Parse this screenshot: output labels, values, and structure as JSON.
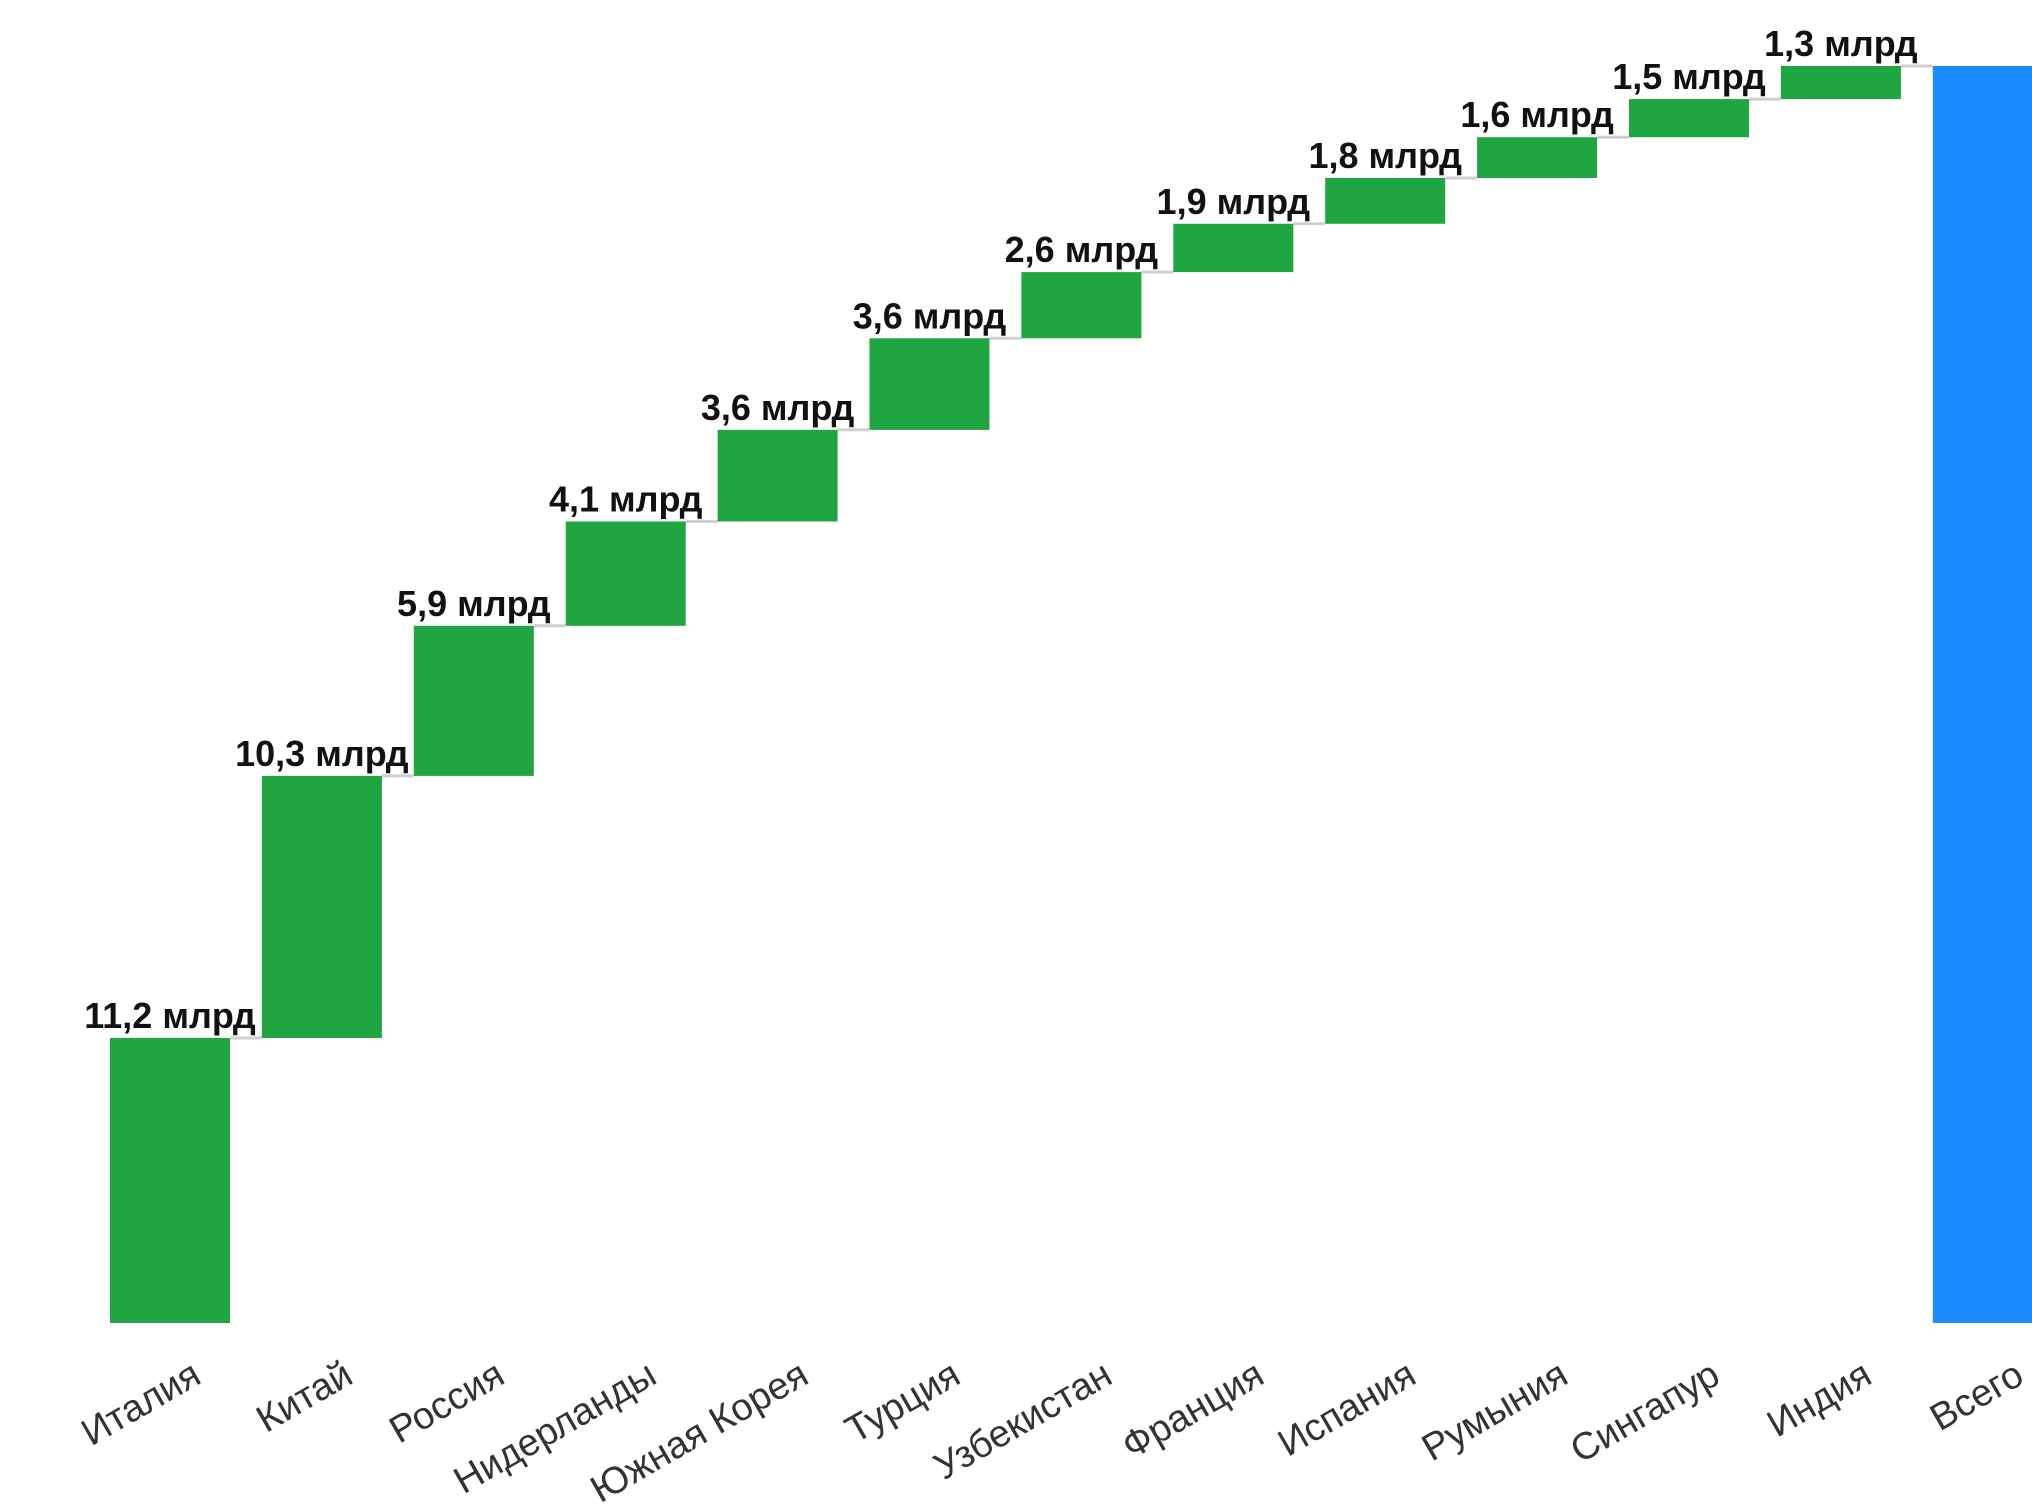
{
  "chart_data": {
    "type": "bar",
    "subtype": "waterfall",
    "categories": [
      "Италия",
      "Китай",
      "Россия",
      "Нидерланды",
      "Южная Корея",
      "Турция",
      "Узбекистан",
      "Франция",
      "Испания",
      "Румыния",
      "Сингапур",
      "Индия",
      "Всего"
    ],
    "values": [
      11.2,
      10.3,
      5.9,
      4.1,
      3.6,
      3.6,
      2.6,
      1.9,
      1.8,
      1.6,
      1.5,
      1.3,
      49.4
    ],
    "data_labels": [
      "11,2 млрд",
      "10,3 млрд",
      "5,9 млрд",
      "4,1 млрд",
      "3,6 млрд",
      "3,6 млрд",
      "2,6 млрд",
      "1,9 млрд",
      "1,8 млрд",
      "1,6 млрд",
      "1,5 млрд",
      "1,3 млрд",
      ""
    ],
    "total_category": "Всего",
    "ylim": [
      0,
      49.4
    ],
    "grid": false,
    "colors": {
      "increase": "#1fa640",
      "total": "#1a8cff",
      "connector": "#cfcfcf"
    }
  }
}
